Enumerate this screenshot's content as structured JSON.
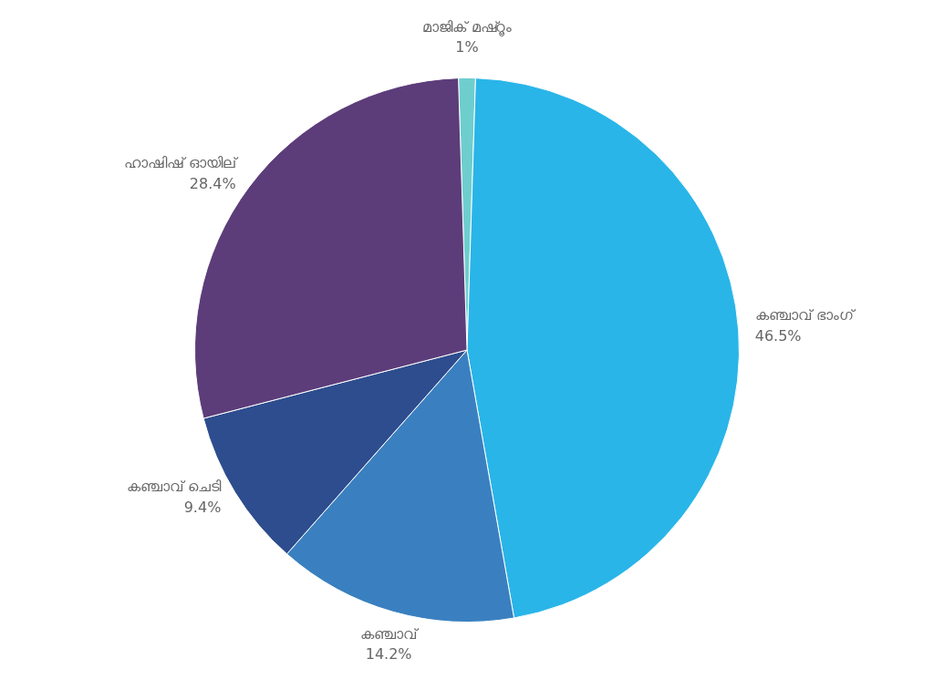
{
  "chart_data": {
    "type": "pie",
    "categories": [
      "മാജിക് മഷ്റൂം",
      "കഞ്ചാവ് ഭാംഗ്",
      "കഞ്ചാവ്",
      "കഞ്ചാവ് ചെടി",
      "ഹാഷിഷ് ഓയില്"
    ],
    "values": [
      1.0,
      46.5,
      14.2,
      9.4,
      28.4
    ],
    "value_labels": [
      "1%",
      "46.5%",
      "14.2%",
      "9.4%",
      "28.4%"
    ],
    "colors": [
      "#6ecece",
      "#29b5e8",
      "#3a80c0",
      "#2d4d8e",
      "#5c3d7a"
    ],
    "data_labels": true
  }
}
